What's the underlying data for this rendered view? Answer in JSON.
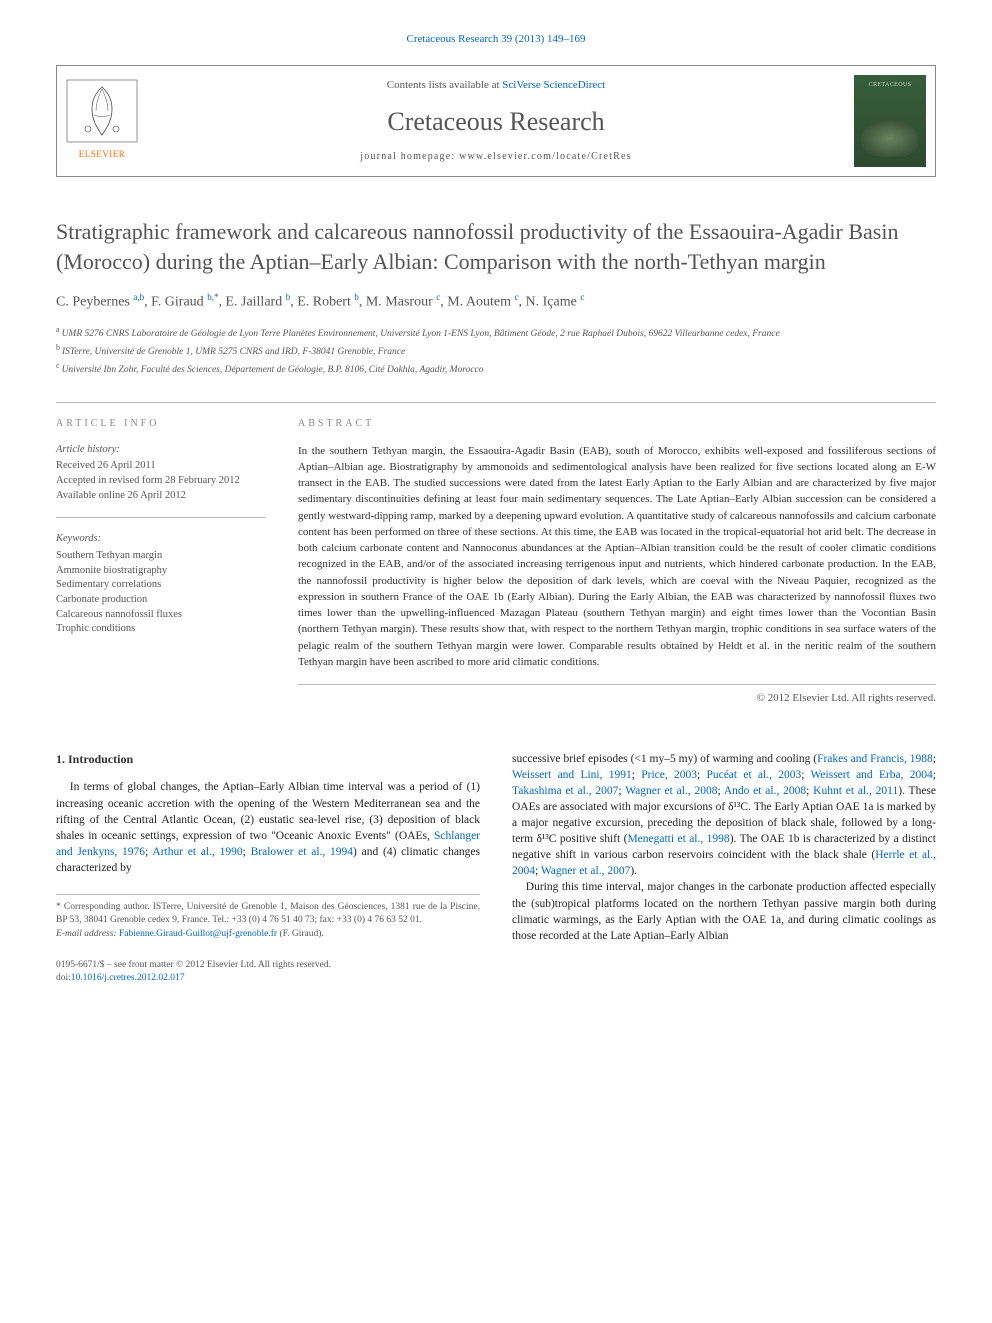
{
  "citation": "Cretaceous Research 39 (2013) 149–169",
  "header": {
    "contents_prefix": "Contents lists available at ",
    "sciencedirect": "SciVerse ScienceDirect",
    "journal_name": "Cretaceous Research",
    "homepage_prefix": "journal homepage: ",
    "homepage": "www.elsevier.com/locate/CretRes",
    "journal_thumb_text": "CRETACEOUS"
  },
  "article": {
    "title": "Stratigraphic framework and calcareous nannofossil productivity of the Essaouira-Agadir Basin (Morocco) during the Aptian–Early Albian: Comparison with the north-Tethyan margin",
    "authors_html": "C. Peybernes <span class='sup'>a,b</span>, F. Giraud <span class='sup'>b,</span><span class='sup star'>*</span>, E. Jaillard <span class='sup'>b</span>, E. Robert <span class='sup'>b</span>, M. Masrour <span class='sup'>c</span>, M. Aoutem <span class='sup'>c</span>, N. Içame <span class='sup'>c</span>",
    "affiliations": [
      {
        "label": "a",
        "text": "UMR 5276 CNRS Laboratoire de Géologie de Lyon Terre Planètes Environnement, Université Lyon 1-ENS Lyon, Bâtiment Géode, 2 rue Raphaël Dubois, 69622 Villeurbanne cedex, France"
      },
      {
        "label": "b",
        "text": "ISTerre, Université de Grenoble 1, UMR 5275 CNRS and IRD, F-38041 Grenoble, France"
      },
      {
        "label": "c",
        "text": "Université Ibn Zohr, Faculté des Sciences, Département de Géologie, B.P. 8106, Cité Dakhla, Agadir, Morocco"
      }
    ]
  },
  "info": {
    "label": "ARTICLE INFO",
    "history_label": "Article history:",
    "history": [
      "Received 26 April 2011",
      "Accepted in revised form 28 February 2012",
      "Available online 26 April 2012"
    ],
    "keywords_label": "Keywords:",
    "keywords": [
      "Southern Tethyan margin",
      "Ammonite biostratigraphy",
      "Sedimentary correlations",
      "Carbonate production",
      "Calcareous nannofossil fluxes",
      "Trophic conditions"
    ]
  },
  "abstract": {
    "label": "ABSTRACT",
    "text": "In the southern Tethyan margin, the Essaouira-Agadir Basin (EAB), south of Morocco, exhibits well-exposed and fossiliferous sections of Aptian–Albian age. Biostratigraphy by ammonoids and sedimentological analysis have been realized for five sections located along an E-W transect in the EAB. The studied successions were dated from the latest Early Aptian to the Early Albian and are characterized by five major sedimentary discontinuities defining at least four main sedimentary sequences. The Late Aptian–Early Albian succession can be considered a gently westward-dipping ramp, marked by a deepening upward evolution. A quantitative study of calcareous nannofossils and calcium carbonate content has been performed on three of these sections. At this time, the EAB was located in the tropical-equatorial hot arid belt. The decrease in both calcium carbonate content and Nannoconus abundances at the Aptian–Albian transition could be the result of cooler climatic conditions recognized in the EAB, and/or of the associated increasing terrigenous input and nutrients, which hindered carbonate production. In the EAB, the nannofossil productivity is higher below the deposition of dark levels, which are coeval with the Niveau Paquier, recognized as the expression in southern France of the OAE 1b (Early Albian). During the Early Albian, the EAB was characterized by nannofossil fluxes two times lower than the upwelling-influenced Mazagan Plateau (southern Tethyan margin) and eight times lower than the Vocontian Basin (northern Tethyan margin). These results show that, with respect to the northern Tethyan margin, trophic conditions in sea surface waters of the pelagic realm of the southern Tethyan margin were lower. Comparable results obtained by Heldt et al. in the neritic realm of the southern Tethyan margin have been ascribed to more arid climatic conditions.",
    "copyright": "© 2012 Elsevier Ltd. All rights reserved."
  },
  "body": {
    "intro_heading": "1. Introduction",
    "col1_p1_pre": "In terms of global changes, the Aptian–Early Albian time interval was a period of (1) increasing oceanic accretion with the opening of the Western Mediterranean sea and the rifting of the Central Atlantic Ocean, (2) eustatic sea-level rise, (3) deposition of black shales in oceanic settings, expression of two \"Oceanic Anoxic Events\" (OAEs, ",
    "ref_schlanger": "Schlanger and Jenkyns, 1976",
    "ref_arthur": "Arthur et al., 1990",
    "ref_bralower": "Bralower et al., 1994",
    "col1_p1_post": ") and (4) climatic changes characterized by",
    "col2_p1_pre": "successive brief episodes (<1 my–5 my) of warming and cooling (",
    "ref_frakes": "Frakes and Francis, 1988",
    "ref_weissert91": "Weissert and Lini, 1991",
    "ref_price": "Price, 2003",
    "ref_pucéat": "Pucéat et al., 2003",
    "ref_weissert04": "Weissert and Erba, 2004",
    "ref_takashima": "Takashima et al., 2007",
    "ref_wagner08": "Wagner et al., 2008",
    "ref_ando": "Ando et al., 2008",
    "ref_kuhnt": "Kuhnt et al., 2011",
    "col2_p1_mid": "). These OAEs are associated with major excursions of δ¹³C. The Early Aptian OAE 1a is marked by a major negative excursion, preceding the deposition of black shale, followed by a long-term δ¹³C positive shift (",
    "ref_menegatti": "Menegatti et al., 1998",
    "col2_p1_mid2": "). The OAE 1b is characterized by a distinct negative shift in various carbon reservoirs coincident with the black shale (",
    "ref_herrle": "Herrle et al., 2004",
    "ref_wagner07": "Wagner et al., 2007",
    "col2_p1_post": ").",
    "col2_p2": "During this time interval, major changes in the carbonate production affected especially the (sub)tropical platforms located on the northern Tethyan passive margin both during climatic warmings, as the Early Aptian with the OAE 1a, and during climatic coolings as those recorded at the Late Aptian–Early Albian"
  },
  "footnotes": {
    "corresponding": "* Corresponding author. ISTerre, Université de Grenoble 1, Maison des Géosciences, 1381 rue de la Piscine, BP 53, 38041 Grenoble cedex 9, France. Tel.: +33 (0) 4 76 51 40 73; fax: +33 (0) 4 76 63 52 01.",
    "email_label": "E-mail address: ",
    "email": "Fabienne.Giraud-Guillot@ujf-grenoble.fr",
    "email_suffix": " (F. Giraud)."
  },
  "bottom": {
    "issn_line": "0195-6671/$ – see front matter © 2012 Elsevier Ltd. All rights reserved.",
    "doi_prefix": "doi:",
    "doi": "10.1016/j.cretres.2012.02.017"
  },
  "colors": {
    "link": "#0066cc",
    "text": "#333333",
    "muted": "#555555",
    "border": "#bbbbbb",
    "elsevier_orange": "#ff6b00",
    "journal_green": "#365e3a"
  }
}
